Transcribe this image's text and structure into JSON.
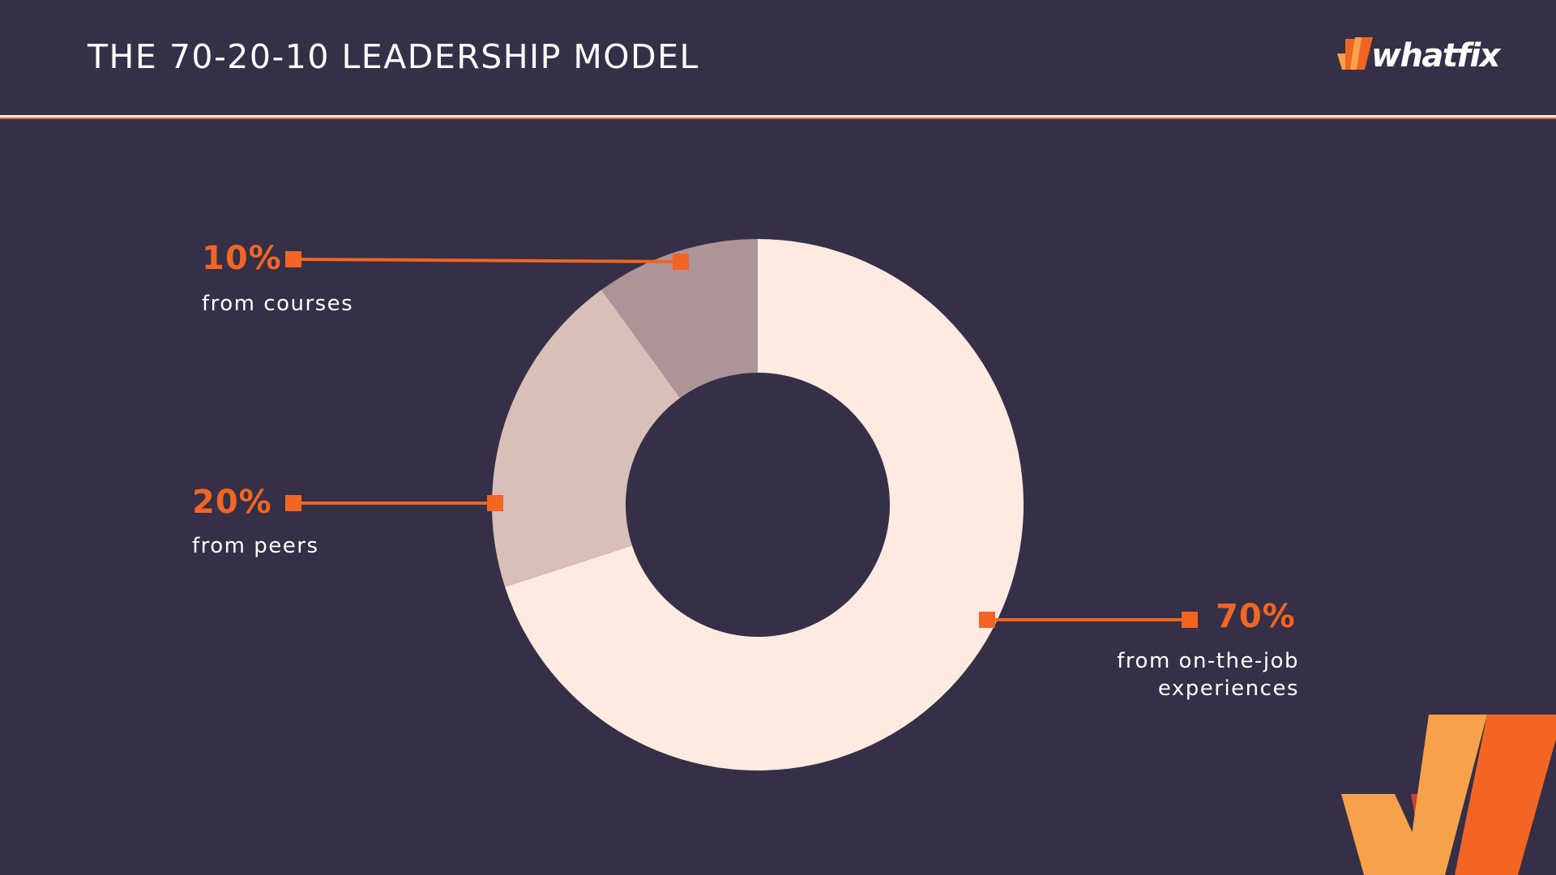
{
  "header": {
    "title": "THE 70-20-10 LEADERSHIP MODEL",
    "logo_text": "whatfix",
    "logo_icon": "whatfix-w-icon"
  },
  "colors": {
    "background": "#353047",
    "accent": "#f26522",
    "slice_on_the_job": "#fdeae1",
    "slice_peers": "#d8bfb8",
    "slice_courses": "#ad9496"
  },
  "chart_data": {
    "type": "pie",
    "donut": true,
    "title": "",
    "slices": [
      {
        "value": 70,
        "label": "70%",
        "caption": "from on-the-job experiences",
        "caption_lines": [
          "from on-the-job",
          "experiences"
        ],
        "color": "#fdeae1"
      },
      {
        "value": 20,
        "label": "20%",
        "caption": "from peers",
        "caption_lines": [
          "from peers"
        ],
        "color": "#d8bfb8"
      },
      {
        "value": 10,
        "label": "10%",
        "caption": "from courses",
        "caption_lines": [
          "from courses"
        ],
        "color": "#ad9496"
      }
    ]
  }
}
